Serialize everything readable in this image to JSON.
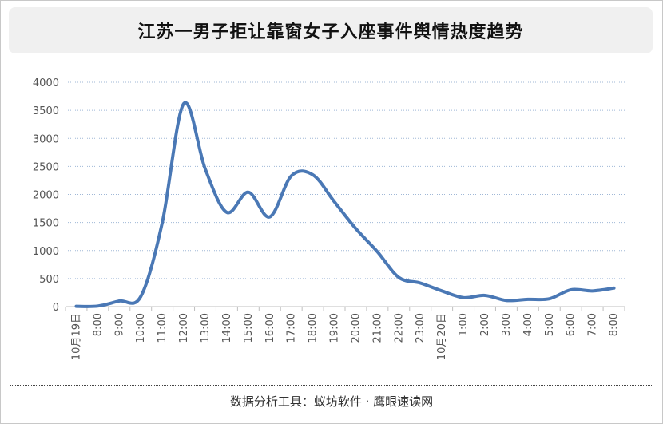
{
  "header": {
    "title": "江苏一男子拒让靠窗女子入座事件舆情热度趋势"
  },
  "footer": {
    "text": "数据分析工具：蚁坊软件 · 鹰眼速读网"
  },
  "colors": {
    "line": "#4a78b5",
    "grid": "#9fb7d6",
    "axis": "#bfbfbf",
    "text": "#555555"
  },
  "chart_data": {
    "type": "line",
    "title": "江苏一男子拒让靠窗女子入座事件舆情热度趋势",
    "categories": [
      "10月19日",
      "8:00",
      "9:00",
      "10:00",
      "11:00",
      "12:00",
      "13:00",
      "14:00",
      "15:00",
      "16:00",
      "17:00",
      "18:00",
      "19:00",
      "20:00",
      "21:00",
      "22:00",
      "23:00",
      "10月20日",
      "1:00",
      "2:00",
      "3:00",
      "4:00",
      "5:00",
      "6:00",
      "7:00",
      "8:00"
    ],
    "y_ticks": [
      0,
      500,
      1000,
      1500,
      2000,
      2500,
      3000,
      3500,
      4000
    ],
    "ylim": [
      0,
      4000
    ],
    "grid": true,
    "smooth": true,
    "series": [
      {
        "values": [
          5,
          10,
          100,
          180,
          1500,
          3620,
          2450,
          1680,
          2040,
          1600,
          2330,
          2350,
          1870,
          1390,
          980,
          520,
          420,
          280,
          160,
          200,
          110,
          130,
          140,
          300,
          280,
          330
        ]
      }
    ]
  }
}
